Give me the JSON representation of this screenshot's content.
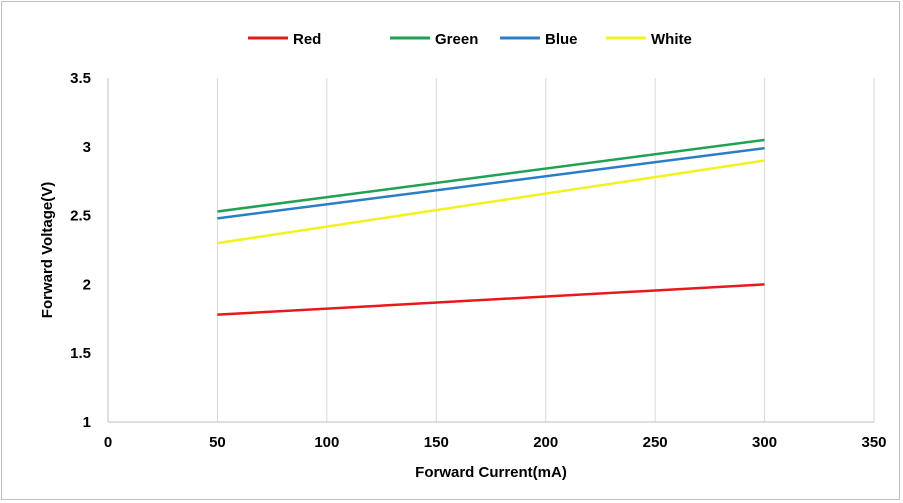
{
  "chart_data": {
    "type": "line",
    "title": "",
    "xlabel": "Forward Current(mA)",
    "ylabel": "Forward Voltage(V)",
    "xlim": [
      0,
      350
    ],
    "ylim": [
      1,
      3.5
    ],
    "x_ticks": [
      0,
      50,
      100,
      150,
      200,
      250,
      300,
      350
    ],
    "y_ticks": [
      1,
      1.5,
      2,
      2.5,
      3,
      3.5
    ],
    "x_tick_labels": [
      "0",
      "50",
      "100",
      "150",
      "200",
      "250",
      "300",
      "350"
    ],
    "y_tick_labels": [
      "1",
      "1.5",
      "2",
      "2.5",
      "3",
      "3.5"
    ],
    "grid": "vertical",
    "legend_position": "top-center",
    "x": [
      50,
      300
    ],
    "series": [
      {
        "name": "Red",
        "color": "#e8191b",
        "values": [
          1.78,
          2.0
        ]
      },
      {
        "name": "Green",
        "color": "#21a153",
        "values": [
          2.53,
          3.05
        ]
      },
      {
        "name": "Blue",
        "color": "#2a7ec5",
        "values": [
          2.48,
          2.99
        ]
      },
      {
        "name": "White",
        "color": "#f2f21f",
        "values": [
          2.3,
          2.9
        ]
      }
    ]
  }
}
